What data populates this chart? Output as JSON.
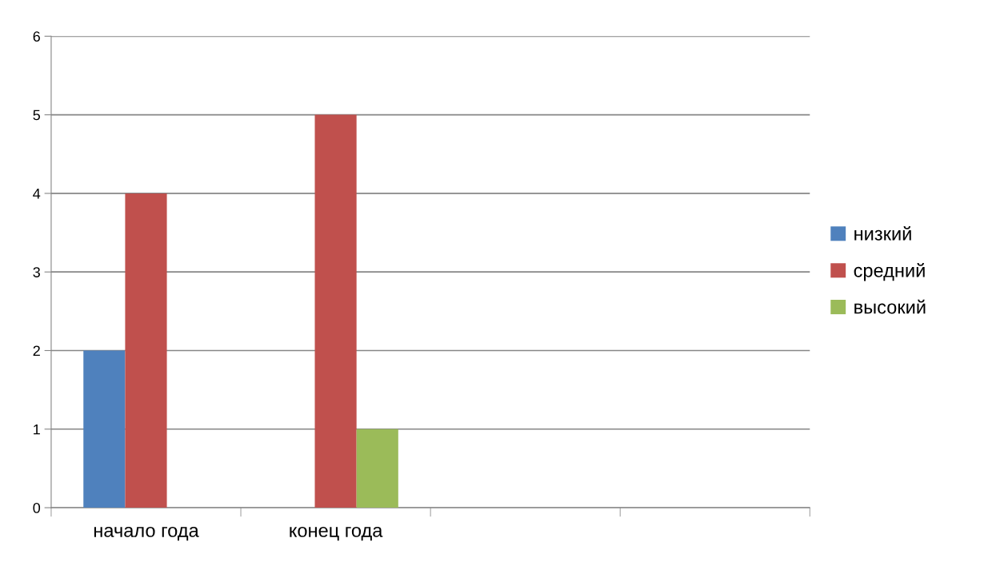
{
  "chart_data": {
    "type": "bar",
    "categories": [
      "начало года",
      "конец года",
      null,
      null
    ],
    "series": [
      {
        "name": "низкий",
        "color": "#4f81bd",
        "values": [
          2,
          0,
          null,
          null
        ]
      },
      {
        "name": "средний",
        "color": "#c0504d",
        "values": [
          4,
          5,
          null,
          null
        ]
      },
      {
        "name": "высокий",
        "color": "#9bbb59",
        "values": [
          0,
          1,
          null,
          null
        ]
      }
    ],
    "ylim": [
      0,
      6
    ],
    "yticks": [
      0,
      1,
      2,
      3,
      4,
      5,
      6
    ],
    "grid": "y",
    "legend": "right"
  }
}
